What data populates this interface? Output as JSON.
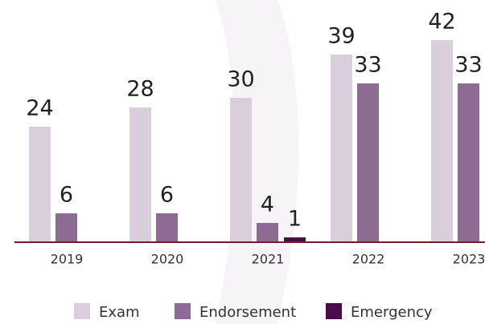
{
  "chart_data": {
    "type": "bar",
    "categories": [
      "2019",
      "2020",
      "2021",
      "2022",
      "2023"
    ],
    "series": [
      {
        "name": "Exam",
        "color": "#d9cedc",
        "values": [
          24,
          28,
          30,
          39,
          42
        ]
      },
      {
        "name": "Endorsement",
        "color": "#8e6b93",
        "values": [
          6,
          6,
          4,
          33,
          33
        ]
      },
      {
        "name": "Emergency",
        "color": "#4a0c4a",
        "values": [
          null,
          null,
          1,
          null,
          null
        ]
      }
    ],
    "ylim": [
      0,
      50
    ],
    "grid": false,
    "legend": "bottom"
  }
}
